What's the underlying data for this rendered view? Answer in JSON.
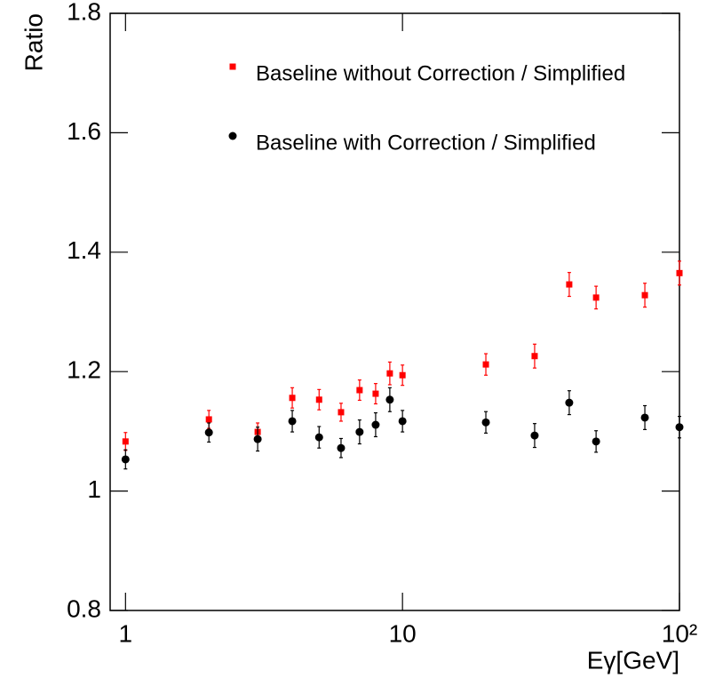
{
  "chart_data": {
    "type": "scatter",
    "xlabel": "Eγ[GeV]",
    "ylabel": "Ratio",
    "x": [
      1,
      2,
      3,
      4,
      5,
      6,
      7,
      8,
      9,
      10,
      20,
      30,
      40,
      50,
      75,
      100
    ],
    "series": [
      {
        "name": "Baseline without Correction / Simplified",
        "color": "#ff0000",
        "marker": "square",
        "values": [
          1.083,
          1.12,
          1.099,
          1.156,
          1.153,
          1.132,
          1.169,
          1.163,
          1.197,
          1.194,
          1.212,
          1.226,
          1.346,
          1.324,
          1.328,
          1.365
        ],
        "errors": [
          0.015,
          0.015,
          0.015,
          0.017,
          0.017,
          0.015,
          0.017,
          0.017,
          0.019,
          0.017,
          0.018,
          0.02,
          0.02,
          0.019,
          0.02,
          0.02
        ]
      },
      {
        "name": "Baseline with Correction / Simplified",
        "color": "#000000",
        "marker": "circle",
        "values": [
          1.053,
          1.098,
          1.087,
          1.117,
          1.09,
          1.072,
          1.099,
          1.111,
          1.153,
          1.117,
          1.115,
          1.093,
          1.148,
          1.083,
          1.123,
          1.107
        ],
        "errors": [
          0.016,
          0.016,
          0.02,
          0.018,
          0.018,
          0.016,
          0.02,
          0.02,
          0.02,
          0.018,
          0.018,
          0.02,
          0.02,
          0.018,
          0.02,
          0.018
        ]
      }
    ],
    "xlim": [
      0.88,
      100
    ],
    "xscale": "log",
    "xticks": [
      1,
      10,
      {
        "value": 100,
        "label": "10²"
      }
    ],
    "ylim": [
      0.8,
      1.8
    ],
    "yticks": [
      0.8,
      1,
      1.2,
      1.4,
      1.6,
      1.8
    ],
    "grid": false
  }
}
